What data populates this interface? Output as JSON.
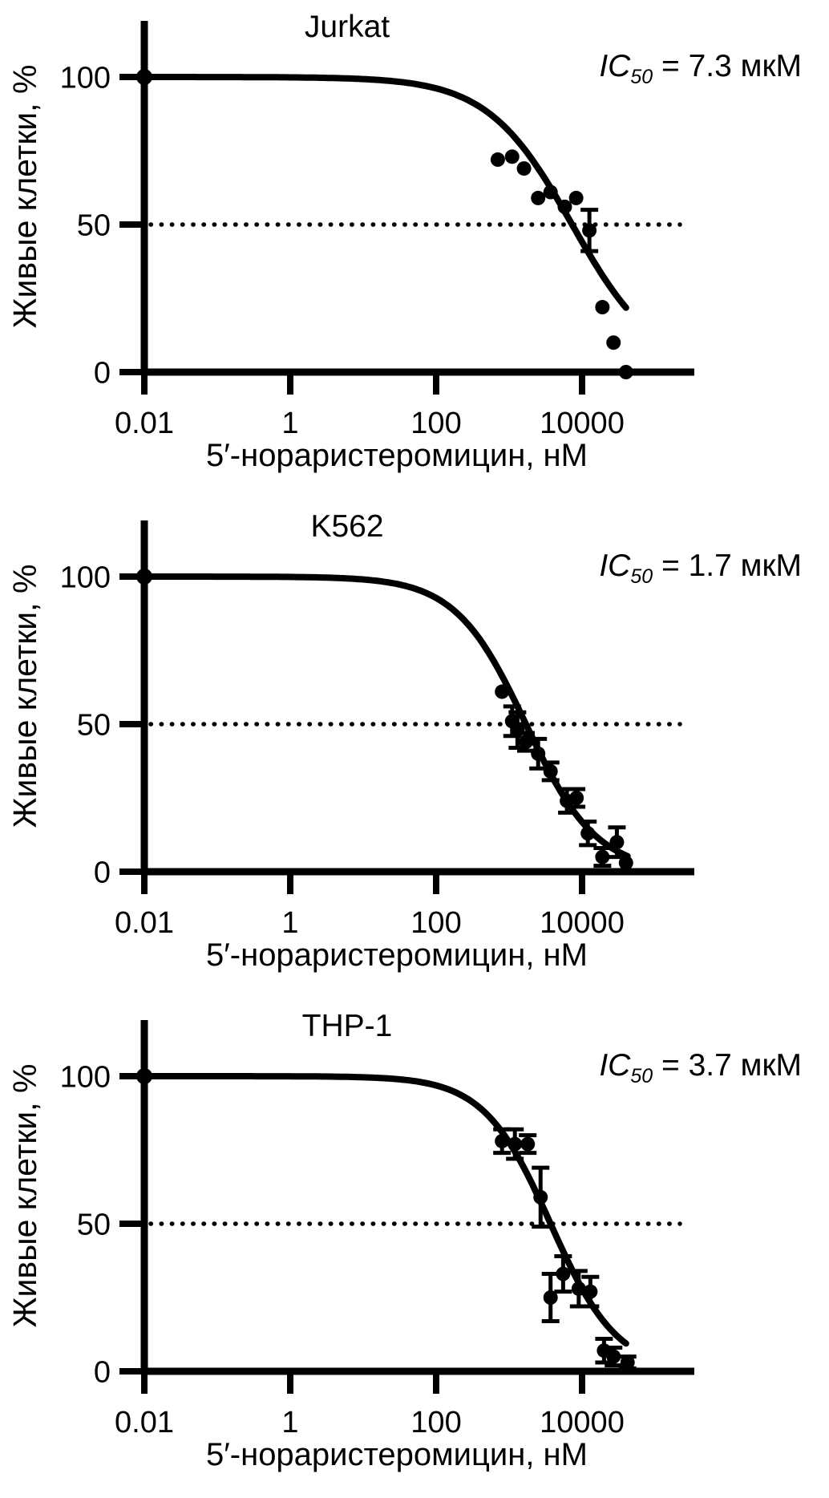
{
  "figure": {
    "background": "#ffffff",
    "ink": "#000000",
    "ylabel": "Живые клетки, %",
    "xlabel": "5′-нораристеромицин, нМ"
  },
  "chart_data": [
    {
      "type": "scatter",
      "title": "Jurkat",
      "ic50_label": {
        "var": "IC",
        "sub": "50",
        "rest": " = 7.3 мкМ"
      },
      "xlabel": "5′-нораристеромицин, нМ",
      "ylabel": "Живые клетки, %",
      "x_scale": "log",
      "x_unit": "нМ",
      "x_ticks": [
        {
          "value": 0.01,
          "label": "0.01"
        },
        {
          "value": 1,
          "label": "1"
        },
        {
          "value": 100,
          "label": "100"
        },
        {
          "value": 10000,
          "label": "10000"
        }
      ],
      "y_ticks": [
        {
          "value": 0,
          "label": "0"
        },
        {
          "value": 50,
          "label": "50"
        },
        {
          "value": 100,
          "label": "100"
        }
      ],
      "y_range": [
        0,
        100
      ],
      "dotted_line_y": 50,
      "curve": {
        "ic50_nm": 7300,
        "hill": 0.75,
        "top": 100,
        "bottom": 0,
        "x_start_nm": 0.01,
        "x_end_nm": 40000
      },
      "points": [
        {
          "x_nm": 0.01,
          "y_pct": 100,
          "err": 0
        },
        {
          "x_nm": 700,
          "y_pct": 72,
          "err": 0
        },
        {
          "x_nm": 1100,
          "y_pct": 73,
          "err": 0
        },
        {
          "x_nm": 1600,
          "y_pct": 69,
          "err": 0
        },
        {
          "x_nm": 2500,
          "y_pct": 59,
          "err": 0
        },
        {
          "x_nm": 3700,
          "y_pct": 61,
          "err": 0
        },
        {
          "x_nm": 5800,
          "y_pct": 56,
          "err": 0
        },
        {
          "x_nm": 8300,
          "y_pct": 59,
          "err": 0
        },
        {
          "x_nm": 12600,
          "y_pct": 48,
          "err": 7
        },
        {
          "x_nm": 19000,
          "y_pct": 22,
          "err": 0
        },
        {
          "x_nm": 27000,
          "y_pct": 10,
          "err": 0
        },
        {
          "x_nm": 40000,
          "y_pct": 0,
          "err": 0
        }
      ]
    },
    {
      "type": "scatter",
      "title": "K562",
      "ic50_label": {
        "var": "IC",
        "sub": "50",
        "rest": " = 1.7 мкМ"
      },
      "xlabel": "5′-нораристеромицин, нМ",
      "ylabel": "Живые клетки, %",
      "x_scale": "log",
      "x_unit": "нМ",
      "x_ticks": [
        {
          "value": 0.01,
          "label": "0.01"
        },
        {
          "value": 1,
          "label": "1"
        },
        {
          "value": 100,
          "label": "100"
        },
        {
          "value": 10000,
          "label": "10000"
        }
      ],
      "y_ticks": [
        {
          "value": 0,
          "label": "0"
        },
        {
          "value": 50,
          "label": "50"
        },
        {
          "value": 100,
          "label": "100"
        }
      ],
      "y_range": [
        0,
        100
      ],
      "dotted_line_y": 50,
      "curve": {
        "ic50_nm": 1700,
        "hill": 0.9,
        "top": 100,
        "bottom": 0,
        "x_start_nm": 0.01,
        "x_end_nm": 42000
      },
      "points": [
        {
          "x_nm": 0.01,
          "y_pct": 100,
          "err": 0
        },
        {
          "x_nm": 800,
          "y_pct": 61,
          "err": 0
        },
        {
          "x_nm": 1100,
          "y_pct": 51,
          "err": 5
        },
        {
          "x_nm": 1300,
          "y_pct": 48,
          "err": 6
        },
        {
          "x_nm": 1700,
          "y_pct": 44,
          "err": 3
        },
        {
          "x_nm": 2500,
          "y_pct": 40,
          "err": 5
        },
        {
          "x_nm": 3700,
          "y_pct": 34,
          "err": 3
        },
        {
          "x_nm": 6200,
          "y_pct": 24,
          "err": 4
        },
        {
          "x_nm": 8400,
          "y_pct": 25,
          "err": 3
        },
        {
          "x_nm": 12000,
          "y_pct": 13,
          "err": 4
        },
        {
          "x_nm": 19000,
          "y_pct": 5,
          "err": 3
        },
        {
          "x_nm": 30000,
          "y_pct": 10,
          "err": 5
        },
        {
          "x_nm": 40000,
          "y_pct": 3,
          "err": 0
        }
      ]
    },
    {
      "type": "scatter",
      "title": "THP-1",
      "ic50_label": {
        "var": "IC",
        "sub": "50",
        "rest": " = 3.7 мкМ"
      },
      "xlabel": "5′-нораристеромицин, нМ",
      "ylabel": "Живые клетки, %",
      "x_scale": "log",
      "x_unit": "нМ",
      "x_ticks": [
        {
          "value": 0.01,
          "label": "0.01"
        },
        {
          "value": 1,
          "label": "1"
        },
        {
          "value": 100,
          "label": "100"
        },
        {
          "value": 10000,
          "label": "10000"
        }
      ],
      "y_ticks": [
        {
          "value": 0,
          "label": "0"
        },
        {
          "value": 50,
          "label": "50"
        },
        {
          "value": 100,
          "label": "100"
        }
      ],
      "y_range": [
        0,
        100
      ],
      "dotted_line_y": 50,
      "curve": {
        "ic50_nm": 3700,
        "hill": 0.95,
        "top": 100,
        "bottom": 0,
        "x_start_nm": 0.01,
        "x_end_nm": 40000
      },
      "points": [
        {
          "x_nm": 0.01,
          "y_pct": 100,
          "err": 0
        },
        {
          "x_nm": 800,
          "y_pct": 78,
          "err": 4
        },
        {
          "x_nm": 1200,
          "y_pct": 77,
          "err": 5
        },
        {
          "x_nm": 1800,
          "y_pct": 77,
          "err": 3
        },
        {
          "x_nm": 2700,
          "y_pct": 59,
          "err": 10
        },
        {
          "x_nm": 3700,
          "y_pct": 25,
          "err": 8
        },
        {
          "x_nm": 5500,
          "y_pct": 33,
          "err": 6
        },
        {
          "x_nm": 9000,
          "y_pct": 28,
          "err": 6
        },
        {
          "x_nm": 13000,
          "y_pct": 27,
          "err": 5
        },
        {
          "x_nm": 20000,
          "y_pct": 7,
          "err": 4
        },
        {
          "x_nm": 27000,
          "y_pct": 5,
          "err": 3
        },
        {
          "x_nm": 42000,
          "y_pct": 3,
          "err": 2
        }
      ]
    }
  ]
}
